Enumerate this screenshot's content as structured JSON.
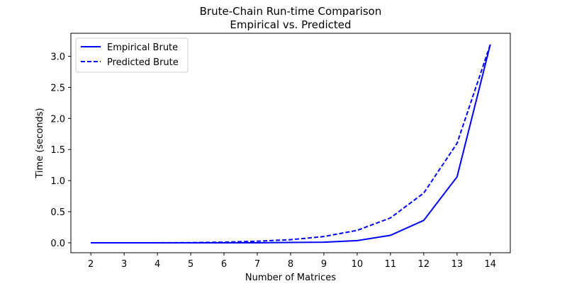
{
  "chart_data": {
    "type": "line",
    "title_line1": "Brute-Chain Run-time Comparison",
    "title_line2": "Empirical vs. Predicted",
    "xlabel": "Number of Matrices",
    "ylabel": "Time (seconds)",
    "x": [
      2,
      3,
      4,
      5,
      6,
      7,
      8,
      9,
      10,
      11,
      12,
      13,
      14
    ],
    "xticks": [
      "2",
      "3",
      "4",
      "5",
      "6",
      "7",
      "8",
      "9",
      "10",
      "11",
      "12",
      "13",
      "14"
    ],
    "yticks": [
      "0.0",
      "0.5",
      "1.0",
      "1.5",
      "2.0",
      "2.5",
      "3.0"
    ],
    "xlim": [
      1.4,
      14.6
    ],
    "ylim": [
      -0.16,
      3.37
    ],
    "grid": false,
    "legend_position": "top-left",
    "series": [
      {
        "name": "Empirical Brute",
        "style": "solid",
        "color": "#0000ff",
        "values": [
          0.0,
          0.0,
          0.0,
          0.0,
          0.0,
          0.0,
          0.005,
          0.01,
          0.035,
          0.12,
          0.36,
          1.06,
          3.19
        ]
      },
      {
        "name": "Predicted Brute",
        "style": "dashed",
        "color": "#0000ff",
        "values": [
          0.0,
          0.0,
          0.0,
          0.003,
          0.01,
          0.025,
          0.05,
          0.1,
          0.2,
          0.4,
          0.8,
          1.6,
          3.19
        ]
      }
    ]
  }
}
